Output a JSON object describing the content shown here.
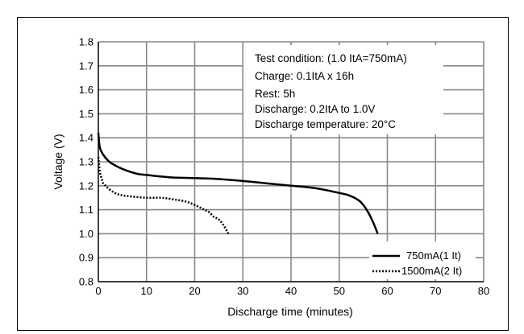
{
  "chart_data": {
    "type": "line",
    "title": "",
    "xlabel": "Discharge time (minutes)",
    "ylabel": "Voltage (V)",
    "xlim": [
      0,
      80
    ],
    "ylim": [
      0.8,
      1.8
    ],
    "xticks": [
      0,
      10,
      20,
      30,
      40,
      50,
      60,
      70,
      80
    ],
    "yticks": [
      0.8,
      0.9,
      1.0,
      1.1,
      1.2,
      1.3,
      1.4,
      1.5,
      1.6,
      1.7,
      1.8
    ],
    "xtick_labels": [
      "0",
      "10",
      "20",
      "30",
      "40",
      "50",
      "60",
      "70",
      "80"
    ],
    "ytick_labels": [
      "0.8",
      "0.9",
      "1.0",
      "1.1",
      "1.2",
      "1.3",
      "1.4",
      "1.5",
      "1.6",
      "1.7",
      "1.8"
    ],
    "grid": true,
    "legend_position": "bottom-right",
    "annotation_lines": [
      "Test condition: (1.0 ItA=750mA)",
      "Charge: 0.1ItA x 16h",
      "Rest: 5h",
      "Discharge: 0.2ItA to 1.0V",
      "Discharge temperature: 20°C"
    ],
    "series": [
      {
        "name": "750mA(1 It)",
        "style": "solid",
        "color": "#000000",
        "x": [
          0,
          0.3,
          1,
          2,
          3,
          5,
          8,
          10,
          15,
          20,
          25,
          30,
          35,
          40,
          45,
          50,
          52,
          54,
          55,
          56,
          57,
          58
        ],
        "y": [
          1.42,
          1.36,
          1.33,
          1.305,
          1.29,
          1.27,
          1.25,
          1.245,
          1.235,
          1.232,
          1.228,
          1.22,
          1.21,
          1.2,
          1.19,
          1.17,
          1.16,
          1.14,
          1.12,
          1.09,
          1.05,
          1.0
        ]
      },
      {
        "name": "1500mA(2 It)",
        "style": "dotted",
        "color": "#000000",
        "x": [
          0,
          0.3,
          0.7,
          1,
          1.5,
          2,
          3,
          4,
          5,
          7,
          10,
          13,
          15,
          18,
          20,
          22,
          23,
          24,
          25,
          26,
          27
        ],
        "y": [
          1.32,
          1.26,
          1.23,
          1.21,
          1.2,
          1.19,
          1.175,
          1.165,
          1.16,
          1.155,
          1.15,
          1.15,
          1.145,
          1.135,
          1.12,
          1.1,
          1.09,
          1.07,
          1.06,
          1.035,
          1.0
        ]
      }
    ]
  }
}
